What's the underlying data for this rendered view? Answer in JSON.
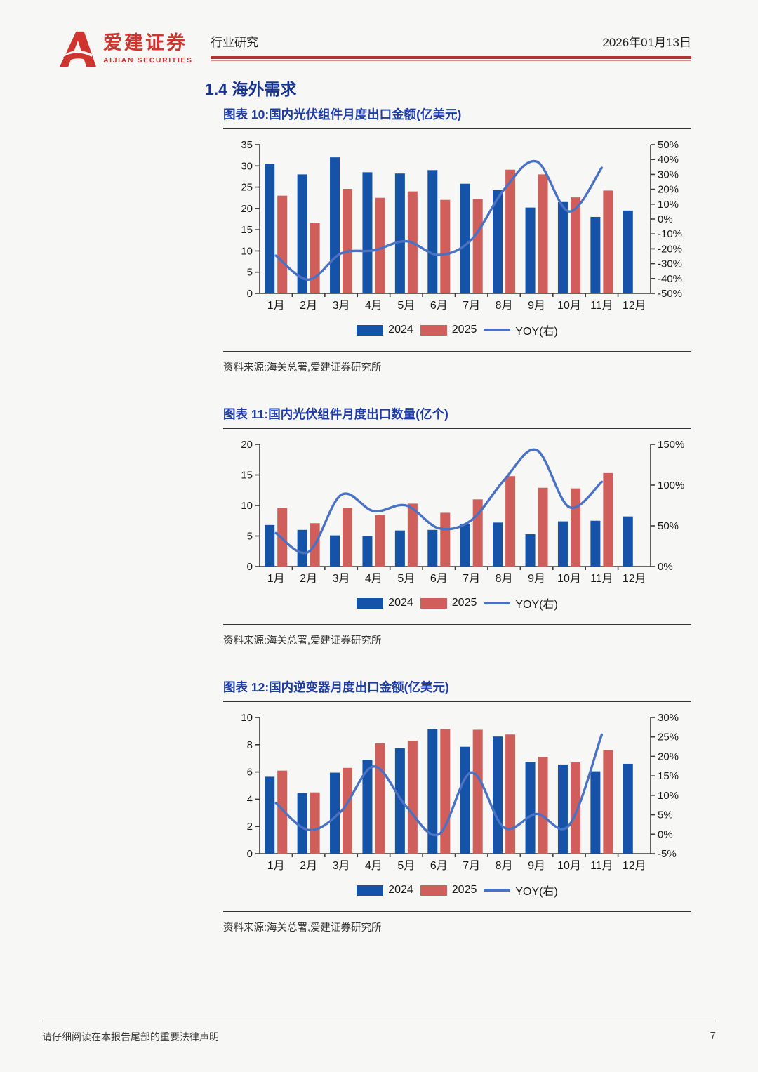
{
  "header": {
    "brand_cn": "爱建证券",
    "brand_en": "AIJIAN SECURITIES",
    "category": "行业研究",
    "date": "2026年01月13日"
  },
  "section": {
    "title": "1.4 海外需求"
  },
  "colors": {
    "brand_red": "#d0342e",
    "header_rule_dark": "#b5342f",
    "header_rule_light": "#e08a86",
    "title_blue": "#1f3ca6",
    "bar_2024": "#1553a8",
    "bar_2025": "#d05e5a",
    "yoy_line": "#4a72c4"
  },
  "chart_data": [
    {
      "type": "bar",
      "title": "图表 10:国内光伏组件月度出口金额(亿美元)",
      "categories": [
        "1月",
        "2月",
        "3月",
        "4月",
        "5月",
        "6月",
        "7月",
        "8月",
        "9月",
        "10月",
        "11月",
        "12月"
      ],
      "series": [
        {
          "name": "2024",
          "type": "bar",
          "axis": "left",
          "color": "#1553a8",
          "values": [
            30.5,
            28.0,
            32.0,
            28.5,
            28.2,
            29.0,
            25.8,
            24.3,
            20.2,
            21.5,
            18.0,
            19.5
          ]
        },
        {
          "name": "2025",
          "type": "bar",
          "axis": "left",
          "color": "#d05e5a",
          "values": [
            23.0,
            16.6,
            24.6,
            22.5,
            24.0,
            22.0,
            22.2,
            29.1,
            28.0,
            22.6,
            24.2,
            null
          ]
        },
        {
          "name": "YOY(右)",
          "type": "line",
          "axis": "right",
          "color": "#4a72c4",
          "values": [
            -24.6,
            -40.7,
            -23.1,
            -21.1,
            -14.9,
            -24.1,
            -13.9,
            19.8,
            38.6,
            5.1,
            34.4,
            null
          ]
        }
      ],
      "left_axis": {
        "min": 0,
        "max": 35,
        "ticks": [
          0,
          5,
          10,
          15,
          20,
          25,
          30,
          35
        ]
      },
      "right_axis": {
        "min": -50,
        "max": 50,
        "ticks": [
          "-50%",
          "-40%",
          "-30%",
          "-20%",
          "-10%",
          "0%",
          "10%",
          "20%",
          "30%",
          "40%",
          "50%"
        ]
      },
      "grid": false,
      "legend_position": "bottom",
      "source": "资料来源:海关总署,爱建证券研究所"
    },
    {
      "type": "bar",
      "title": "图表 11:国内光伏组件月度出口数量(亿个)",
      "categories": [
        "1月",
        "2月",
        "3月",
        "4月",
        "5月",
        "6月",
        "7月",
        "8月",
        "9月",
        "10月",
        "11月",
        "12月"
      ],
      "series": [
        {
          "name": "2024",
          "type": "bar",
          "axis": "left",
          "color": "#1553a8",
          "values": [
            6.8,
            6.0,
            5.1,
            5.0,
            5.9,
            6.0,
            7.0,
            7.2,
            5.3,
            7.4,
            7.5,
            8.2
          ]
        },
        {
          "name": "2025",
          "type": "bar",
          "axis": "left",
          "color": "#d05e5a",
          "values": [
            9.6,
            7.1,
            9.6,
            8.4,
            10.3,
            8.8,
            11.0,
            14.8,
            12.9,
            12.8,
            15.3,
            null
          ]
        },
        {
          "name": "YOY(右)",
          "type": "line",
          "axis": "right",
          "color": "#4a72c4",
          "values": [
            41,
            18,
            88,
            68,
            75,
            47,
            57,
            106,
            143,
            73,
            104,
            null
          ]
        }
      ],
      "left_axis": {
        "min": 0,
        "max": 20,
        "ticks": [
          0,
          5,
          10,
          15,
          20
        ]
      },
      "right_axis": {
        "min": 0,
        "max": 150,
        "ticks": [
          "0%",
          "50%",
          "100%",
          "150%"
        ]
      },
      "grid": false,
      "legend_position": "bottom",
      "source": "资料来源:海关总署,爱建证券研究所"
    },
    {
      "type": "bar",
      "title": "图表 12:国内逆变器月度出口金额(亿美元)",
      "categories": [
        "1月",
        "2月",
        "3月",
        "4月",
        "5月",
        "6月",
        "7月",
        "8月",
        "9月",
        "10月",
        "11月",
        "12月"
      ],
      "series": [
        {
          "name": "2024",
          "type": "bar",
          "axis": "left",
          "color": "#1553a8",
          "values": [
            5.65,
            4.45,
            5.95,
            6.9,
            7.75,
            9.15,
            7.85,
            8.6,
            6.75,
            6.55,
            6.05,
            6.6
          ]
        },
        {
          "name": "2025",
          "type": "bar",
          "axis": "left",
          "color": "#d05e5a",
          "values": [
            6.1,
            4.5,
            6.3,
            8.1,
            8.3,
            9.15,
            9.1,
            8.75,
            7.1,
            6.7,
            7.6,
            null
          ]
        },
        {
          "name": "YOY(右)",
          "type": "line",
          "axis": "right",
          "color": "#4a72c4",
          "values": [
            8.0,
            1.1,
            5.9,
            17.4,
            7.1,
            0.0,
            15.9,
            1.7,
            5.2,
            2.3,
            25.6,
            null
          ]
        }
      ],
      "left_axis": {
        "min": 0,
        "max": 10,
        "ticks": [
          0,
          2,
          4,
          6,
          8,
          10
        ]
      },
      "right_axis": {
        "min": -5,
        "max": 30,
        "ticks": [
          "-5%",
          "0%",
          "5%",
          "10%",
          "15%",
          "20%",
          "25%",
          "30%"
        ]
      },
      "grid": false,
      "legend_position": "bottom",
      "source": "资料来源:海关总署,爱建证券研究所"
    }
  ],
  "footer": {
    "disclaimer": "请仔细阅读在本报告尾部的重要法律声明",
    "page_number": "7"
  }
}
